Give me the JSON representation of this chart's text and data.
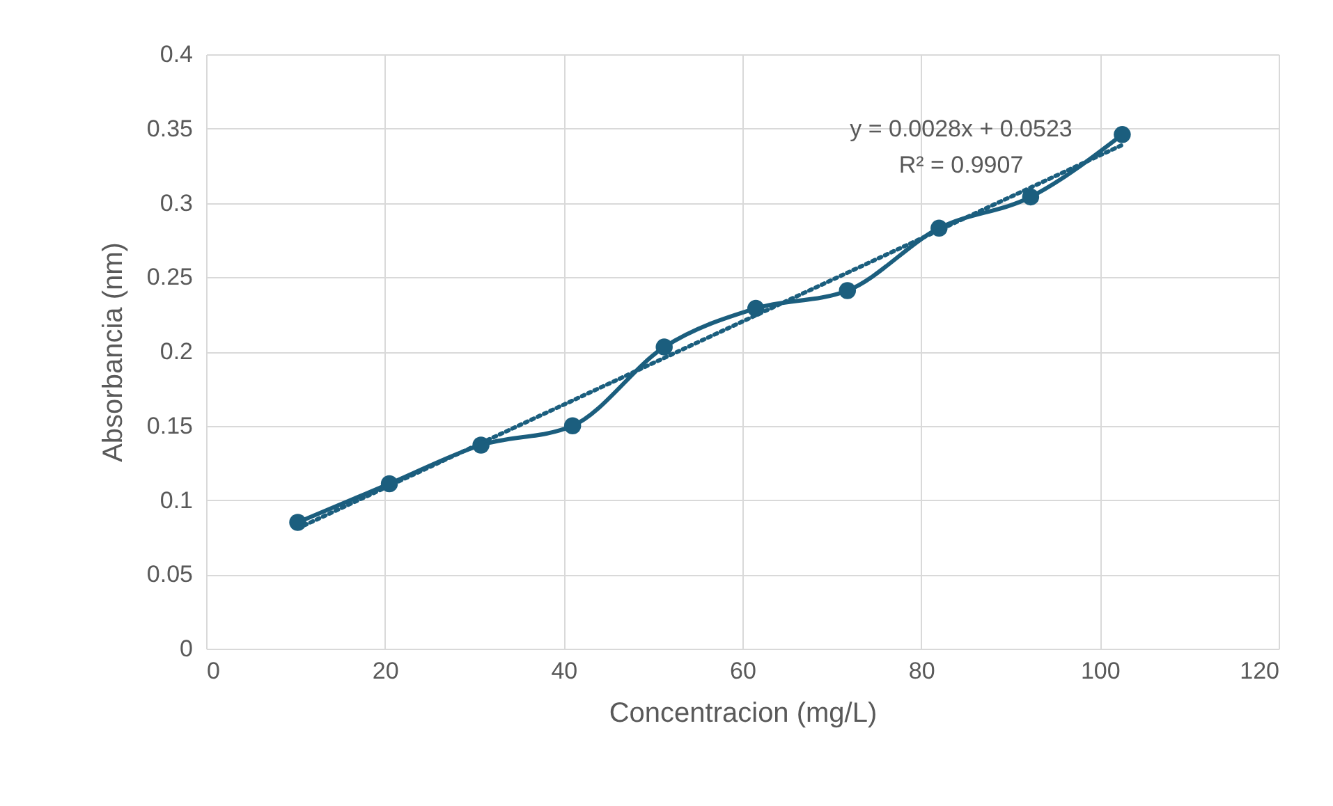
{
  "chart_data": {
    "type": "line",
    "xlabel": "Concentracion (mg/L)",
    "ylabel": "Absorbancia (nm)",
    "xlim": [
      0,
      120
    ],
    "xticks": [
      0,
      20,
      40,
      60,
      80,
      100,
      120
    ],
    "ylim": [
      0,
      0.4
    ],
    "yticks": [
      0,
      0.05,
      0.1,
      0.15,
      0.2,
      0.25,
      0.3,
      0.35,
      0.4
    ],
    "grid": true,
    "marker": "circle",
    "line_style": "solid",
    "series": [
      {
        "color": "#1b5e7e",
        "x": [
          10.25,
          20.5,
          30.75,
          41,
          51.25,
          61.5,
          71.75,
          82,
          92.25,
          102.5
        ],
        "values": [
          0.085,
          0.111,
          0.137,
          0.15,
          0.203,
          0.229,
          0.241,
          0.283,
          0.304,
          0.346
        ]
      },
      {
        "type": "line",
        "color": "#1b5e7e",
        "line_style": "dotted",
        "marker": "none",
        "x": [
          10.25,
          102.5
        ],
        "values": [
          0.081,
          0.339
        ]
      }
    ],
    "annotations": [
      "y = 0.0028x + 0.0523",
      "R² = 0.9907"
    ]
  }
}
